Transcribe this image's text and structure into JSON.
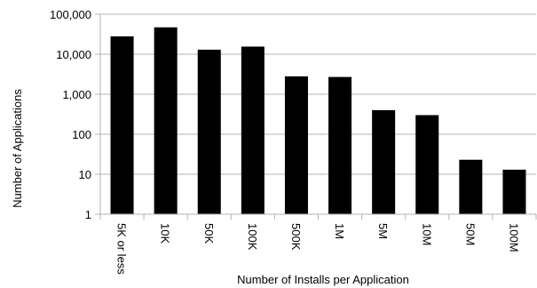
{
  "chart_data": {
    "type": "bar",
    "title": "",
    "xlabel": "Number of Installs per Application",
    "ylabel": "Number of Applications",
    "yscale": "log",
    "ylim": [
      1,
      100000
    ],
    "grid": "horizontal",
    "legend": "none",
    "bar_color": "#000000",
    "grid_color": "#b3b3b3",
    "categories": [
      "5K or less",
      "10K",
      "50K",
      "100K",
      "500K",
      "1M",
      "5M",
      "10M",
      "50M",
      "100M"
    ],
    "values": [
      28000,
      47000,
      13000,
      15500,
      2800,
      2700,
      400,
      300,
      23,
      13
    ],
    "y_ticks": [
      {
        "value": 1,
        "label": "1"
      },
      {
        "value": 10,
        "label": "10"
      },
      {
        "value": 100,
        "label": "100"
      },
      {
        "value": 1000,
        "label": "1,000"
      },
      {
        "value": 10000,
        "label": "10,000"
      },
      {
        "value": 100000,
        "label": "100,000"
      }
    ]
  }
}
